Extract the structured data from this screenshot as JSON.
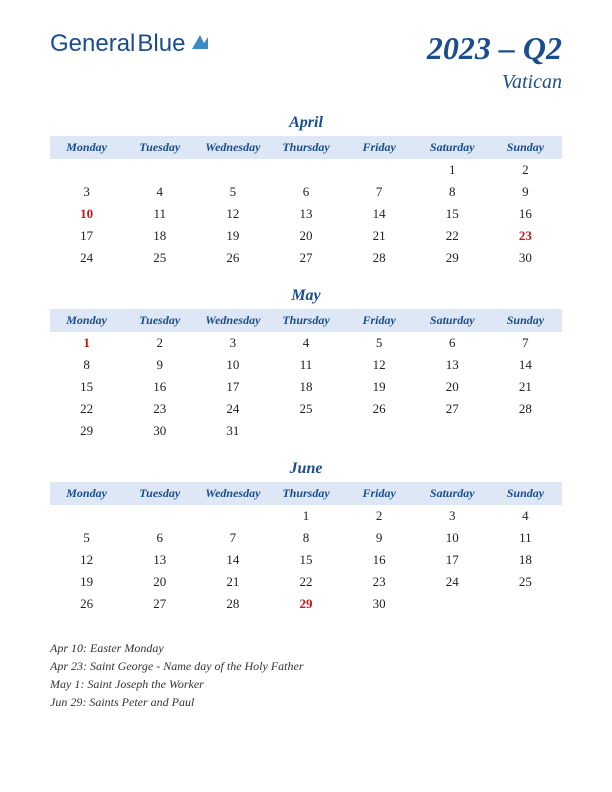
{
  "logo": {
    "text1": "General",
    "text2": "Blue"
  },
  "header": {
    "quarter": "2023 – Q2",
    "country": "Vatican"
  },
  "weekdays": [
    "Monday",
    "Tuesday",
    "Wednesday",
    "Thursday",
    "Friday",
    "Saturday",
    "Sunday"
  ],
  "months": [
    {
      "name": "April",
      "weeks": [
        [
          "",
          "",
          "",
          "",
          "",
          "1",
          "2"
        ],
        [
          "3",
          "4",
          "5",
          "6",
          "7",
          "8",
          "9"
        ],
        [
          "10",
          "11",
          "12",
          "13",
          "14",
          "15",
          "16"
        ],
        [
          "17",
          "18",
          "19",
          "20",
          "21",
          "22",
          "23"
        ],
        [
          "24",
          "25",
          "26",
          "27",
          "28",
          "29",
          "30"
        ]
      ],
      "holidays": [
        "10",
        "23"
      ]
    },
    {
      "name": "May",
      "weeks": [
        [
          "1",
          "2",
          "3",
          "4",
          "5",
          "6",
          "7"
        ],
        [
          "8",
          "9",
          "10",
          "11",
          "12",
          "13",
          "14"
        ],
        [
          "15",
          "16",
          "17",
          "18",
          "19",
          "20",
          "21"
        ],
        [
          "22",
          "23",
          "24",
          "25",
          "26",
          "27",
          "28"
        ],
        [
          "29",
          "30",
          "31",
          "",
          "",
          "",
          ""
        ]
      ],
      "holidays": [
        "1"
      ]
    },
    {
      "name": "June",
      "weeks": [
        [
          "",
          "",
          "",
          "1",
          "2",
          "3",
          "4"
        ],
        [
          "5",
          "6",
          "7",
          "8",
          "9",
          "10",
          "11"
        ],
        [
          "12",
          "13",
          "14",
          "15",
          "16",
          "17",
          "18"
        ],
        [
          "19",
          "20",
          "21",
          "22",
          "23",
          "24",
          "25"
        ],
        [
          "26",
          "27",
          "28",
          "29",
          "30",
          "",
          ""
        ]
      ],
      "holidays": [
        "29"
      ]
    }
  ],
  "holiday_list": [
    "Apr 10: Easter Monday",
    "Apr 23: Saint George - Name day of the Holy Father",
    "May 1: Saint Joseph the Worker",
    "Jun 29: Saints Peter and Paul"
  ],
  "colors": {
    "brand": "#1a4d8f",
    "header_bg": "#dde7f5",
    "holiday": "#c01818",
    "text": "#222222"
  }
}
